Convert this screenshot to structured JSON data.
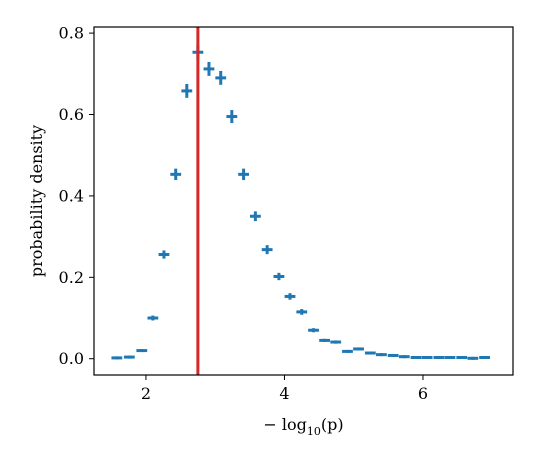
{
  "chart_data": {
    "type": "scatter",
    "title": "",
    "xlabel_parts": [
      "− log",
      "10",
      "(p)"
    ],
    "ylabel": "probability density",
    "xlim": [
      1.25,
      7.3
    ],
    "ylim": [
      -0.04,
      0.815
    ],
    "xticks": [
      2,
      4,
      6
    ],
    "xtick_labels": [
      "2",
      "4",
      "6"
    ],
    "yticks": [
      0.0,
      0.2,
      0.4,
      0.6,
      0.8
    ],
    "ytick_labels": [
      "0.0",
      "0.2",
      "0.4",
      "0.6",
      "0.8"
    ],
    "grid": false,
    "series": [
      {
        "color": "#1f77b4",
        "bin_width": 0.156,
        "points": [
          {
            "x": 1.58,
            "y": 0.002,
            "yerr": 0.002
          },
          {
            "x": 1.76,
            "y": 0.004,
            "yerr": 0.002
          },
          {
            "x": 1.94,
            "y": 0.02,
            "yerr": 0.003
          },
          {
            "x": 2.1,
            "y": 0.1,
            "yerr": 0.006
          },
          {
            "x": 2.26,
            "y": 0.256,
            "yerr": 0.01
          },
          {
            "x": 2.43,
            "y": 0.453,
            "yerr": 0.014
          },
          {
            "x": 2.59,
            "y": 0.658,
            "yerr": 0.017
          },
          {
            "x": 2.75,
            "y": 0.753,
            "yerr": 0.018
          },
          {
            "x": 2.91,
            "y": 0.712,
            "yerr": 0.017
          },
          {
            "x": 3.08,
            "y": 0.69,
            "yerr": 0.017
          },
          {
            "x": 3.24,
            "y": 0.595,
            "yerr": 0.016
          },
          {
            "x": 3.41,
            "y": 0.453,
            "yerr": 0.014
          },
          {
            "x": 3.58,
            "y": 0.35,
            "yerr": 0.012
          },
          {
            "x": 3.75,
            "y": 0.268,
            "yerr": 0.011
          },
          {
            "x": 3.92,
            "y": 0.202,
            "yerr": 0.009
          },
          {
            "x": 4.08,
            "y": 0.153,
            "yerr": 0.008
          },
          {
            "x": 4.25,
            "y": 0.115,
            "yerr": 0.007
          },
          {
            "x": 4.42,
            "y": 0.07,
            "yerr": 0.005
          },
          {
            "x": 4.58,
            "y": 0.045,
            "yerr": 0.004
          },
          {
            "x": 4.74,
            "y": 0.041,
            "yerr": 0.004
          },
          {
            "x": 4.91,
            "y": 0.018,
            "yerr": 0.003
          },
          {
            "x": 5.07,
            "y": 0.024,
            "yerr": 0.003
          },
          {
            "x": 5.24,
            "y": 0.014,
            "yerr": 0.002
          },
          {
            "x": 5.4,
            "y": 0.01,
            "yerr": 0.002
          },
          {
            "x": 5.57,
            "y": 0.008,
            "yerr": 0.002
          },
          {
            "x": 5.73,
            "y": 0.005,
            "yerr": 0.001
          },
          {
            "x": 5.9,
            "y": 0.003,
            "yerr": 0.001
          },
          {
            "x": 6.06,
            "y": 0.003,
            "yerr": 0.001
          },
          {
            "x": 6.23,
            "y": 0.003,
            "yerr": 0.001
          },
          {
            "x": 6.39,
            "y": 0.003,
            "yerr": 0.001
          },
          {
            "x": 6.56,
            "y": 0.003,
            "yerr": 0.001
          },
          {
            "x": 6.72,
            "y": 0.001,
            "yerr": 0.001
          },
          {
            "x": 6.89,
            "y": 0.003,
            "yerr": 0.001
          }
        ]
      }
    ],
    "vline": {
      "x": 2.75,
      "color": "#d62728"
    }
  }
}
